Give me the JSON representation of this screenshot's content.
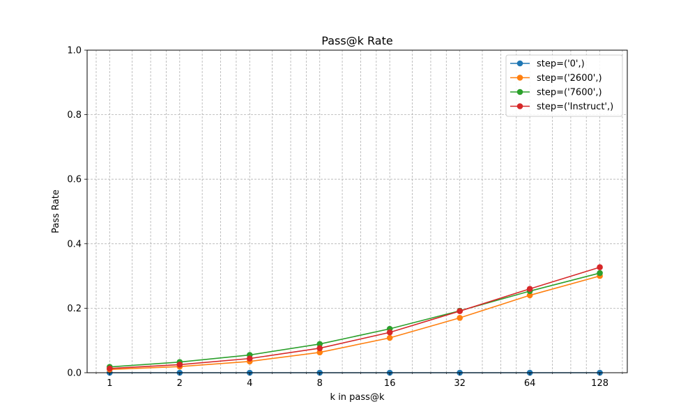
{
  "chart_data": {
    "type": "line",
    "title": "Pass@k Rate",
    "xlabel": "k in pass@k",
    "ylabel": "Pass Rate",
    "x_scale": "log2",
    "x": [
      1,
      2,
      4,
      8,
      16,
      32,
      64,
      128
    ],
    "x_tick_labels": [
      "1",
      "2",
      "4",
      "8",
      "16",
      "32",
      "64",
      "128"
    ],
    "y_ticks": [
      0.0,
      0.2,
      0.4,
      0.6,
      0.8,
      1.0
    ],
    "y_tick_labels": [
      "0.0",
      "0.2",
      "0.4",
      "0.6",
      "0.8",
      "1.0"
    ],
    "xlim": [
      0.8,
      168
    ],
    "ylim": [
      0,
      1
    ],
    "grid": true,
    "legend_position": "top-right",
    "series": [
      {
        "name": "step=('0',)",
        "color": "#1f77b4",
        "values": [
          0,
          0,
          0,
          0,
          0,
          0,
          0,
          0
        ]
      },
      {
        "name": "step=('2600',)",
        "color": "#ff7f0e",
        "values": [
          0.01,
          0.019,
          0.035,
          0.063,
          0.108,
          0.17,
          0.24,
          0.3
        ]
      },
      {
        "name": "step=('7600',)",
        "color": "#2ca02c",
        "values": [
          0.018,
          0.033,
          0.055,
          0.089,
          0.136,
          0.192,
          0.253,
          0.309
        ]
      },
      {
        "name": "step=('Instruct',)",
        "color": "#d62728",
        "values": [
          0.013,
          0.025,
          0.044,
          0.076,
          0.125,
          0.191,
          0.26,
          0.327
        ]
      }
    ]
  }
}
